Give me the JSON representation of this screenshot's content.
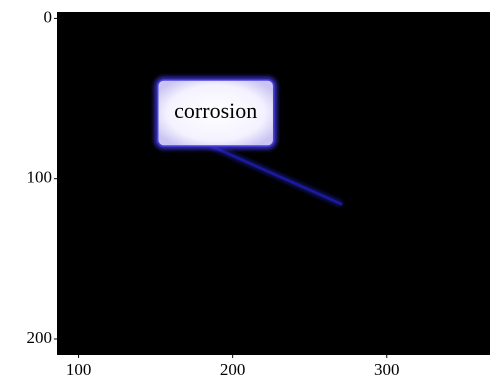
{
  "chart_data": {
    "type": "image",
    "background": "#000000",
    "xlim": [
      86,
      367
    ],
    "ylim": [
      210,
      -4
    ],
    "xticks": [
      100,
      200,
      300
    ],
    "yticks": [
      0,
      100,
      200
    ],
    "annotation": {
      "text": "corrosion",
      "xy": [
        271,
        116
      ],
      "xytext": [
        189,
        59
      ],
      "color": "#1a1aa0"
    }
  }
}
